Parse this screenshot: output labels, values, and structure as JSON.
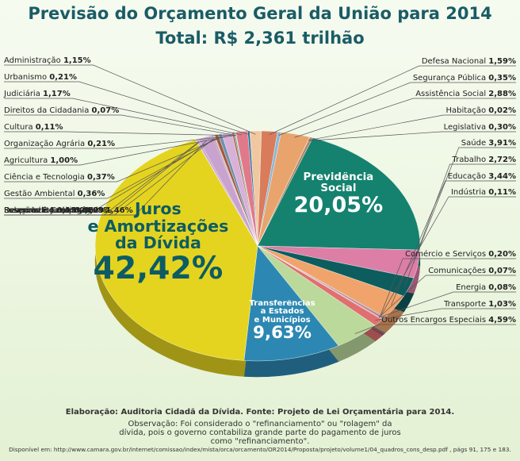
{
  "chart_data": {
    "type": "pie",
    "title": "Previsão do Orçamento Geral da União para 2014",
    "subtitle": "Total: R$ 2,361 trilhão",
    "categories": [
      "Direitos da Cidadania",
      "Judiciária",
      "Urbanismo",
      "Administração",
      "Defesa Nacional",
      "Segurança Pública",
      "Assistência Social",
      "Habitação",
      "Legislativa",
      "Previdência\nSocial",
      "Saúde",
      "Trabalho",
      "Educação",
      "Indústria",
      "Comércio e Serviços",
      "Comunicações",
      "Energia",
      "Transporte",
      "Outros Encargos Especiais",
      "Transferências\na Estados\ne Municípios",
      "Juros\ne Amortizações\nda Dívida",
      "Desporto e Lazer",
      "Essencial à Justiça",
      "Reserva de Contingência",
      "Relações Exteriores",
      "Saneamento",
      "Gestão Ambiental",
      "Ciência e Tecnologia",
      "Agricultura",
      "Organização Agrária",
      "Cultura"
    ],
    "values": [
      0.07,
      1.17,
      0.21,
      1.15,
      1.59,
      0.35,
      2.88,
      0.02,
      0.3,
      20.05,
      3.91,
      2.72,
      3.44,
      0.11,
      0.2,
      0.07,
      0.08,
      1.03,
      4.59,
      9.63,
      42.42,
      0.06,
      0.22,
      1.46,
      0.09,
      0.15,
      0.36,
      0.37,
      1.0,
      0.21,
      0.11
    ],
    "value_labels": [
      "0,07%",
      "1,17%",
      "0,21%",
      "1,15%",
      "1,59%",
      "0,35%",
      "2,88%",
      "0,02%",
      "0,30%",
      "20,05%",
      "3,91%",
      "2,72%",
      "3,44%",
      "0,11%",
      "0,20%",
      "0,07%",
      "0,08%",
      "1,03%",
      "4,59%",
      "9,63%",
      "42,42%",
      "0,06%",
      "0,22%",
      "1,46%",
      "0,09%",
      "0,15%",
      "0,36%",
      "0,37%",
      "1,00%",
      "0,21%",
      "0,11%"
    ],
    "colors": [
      "#f4b6b6",
      "#e07a8a",
      "#2b6fa8",
      "#f0c8a0",
      "#d97c5c",
      "#8ab8d8",
      "#e8a46c",
      "#c05050",
      "#b08a6a",
      "#14826e",
      "#dc7ea6",
      "#0e5d5e",
      "#f0a46c",
      "#5a8fc0",
      "#c86060",
      "#3a70a0",
      "#e05050",
      "#e07070",
      "#bcd99c",
      "#2c88b2",
      "#e4d420",
      "#9090c0",
      "#c8a0d0",
      "#c9a3cf",
      "#804060",
      "#e0b0c0",
      "#a05a3a",
      "#7090b0",
      "#d8b0d8",
      "#b07050",
      "#40a0a0"
    ],
    "source": "Elaboração: Auditoria Cidadã da Dívida. Fonte: Projeto de Lei Orçamentária para 2014.",
    "note": "Observação:  Foi considerado o \"refinanciamento\" ou \"rolagem\" da dívida, pois o governo contabiliza grande parte do pagamento de juros como \"refinanciamento\".",
    "link": "Disponível em: http://www.camara.gov.br/internet/comissao/index/mista/orca/orcamento/OR2014/Proposta/projeto/volume1/04_quadros_cons_desp.pdf , págs 91, 175 e 183."
  }
}
